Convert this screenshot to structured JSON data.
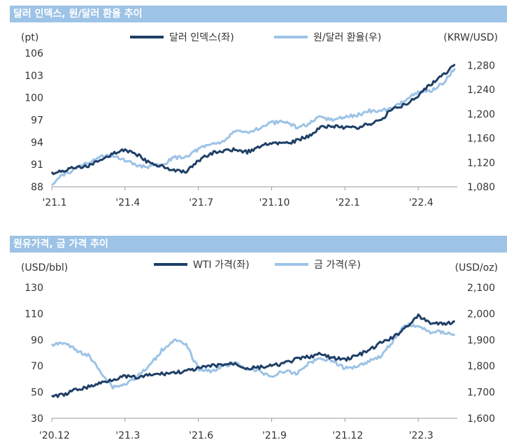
{
  "chart_data": [
    {
      "type": "line",
      "title": "달러 인덱스, 원/달러 환율 추이",
      "left_unit": "(pt)",
      "right_unit": "(KRW/USD)",
      "x_ticks": [
        "'21.1",
        "'21.4",
        "'21.7",
        "'21.10",
        "'22.1",
        "'22.4"
      ],
      "y_left": {
        "min": 88,
        "max": 106,
        "ticks": [
          "88",
          "91",
          "94",
          "97",
          "100",
          "103",
          "106"
        ]
      },
      "y_right": {
        "min": 1080,
        "max": 1300,
        "ticks": [
          "1,080",
          "1,120",
          "1,160",
          "1,200",
          "1,240",
          "1,280"
        ]
      },
      "colors": {
        "left": "#1f3f66",
        "right": "#9dc3e6"
      },
      "series": [
        {
          "name": "달러 인덱스(좌)",
          "axis": "left",
          "x_month": [
            0,
            0.5,
            1,
            1.5,
            2,
            2.5,
            3,
            3.5,
            4,
            4.5,
            5,
            5.5,
            6,
            6.5,
            7,
            7.5,
            8,
            8.5,
            9,
            9.5,
            10,
            10.5,
            11,
            11.5,
            12,
            12.5,
            13,
            13.5,
            14,
            14.5,
            15,
            15.5,
            16,
            16.5
          ],
          "values": [
            89.8,
            90.2,
            90.6,
            90.8,
            91.5,
            92.5,
            93.0,
            92.3,
            91.2,
            90.8,
            90.2,
            89.9,
            91.5,
            92.5,
            92.8,
            93.0,
            92.7,
            93.3,
            94.0,
            93.8,
            94.2,
            94.8,
            96.0,
            96.2,
            96.0,
            95.9,
            96.5,
            97.0,
            98.8,
            99.0,
            100.3,
            101.8,
            103.0,
            104.5
          ]
        },
        {
          "name": "원/달러 환율(우)",
          "axis": "right",
          "x_month": [
            0,
            0.5,
            1,
            1.5,
            2,
            2.5,
            3,
            3.5,
            4,
            4.5,
            5,
            5.5,
            6,
            6.5,
            7,
            7.5,
            8,
            8.5,
            9,
            9.5,
            10,
            10.5,
            11,
            11.5,
            12,
            12.5,
            13,
            13.5,
            14,
            14.5,
            15,
            15.5,
            16,
            16.5
          ],
          "values": [
            1085,
            1100,
            1110,
            1120,
            1130,
            1132,
            1123,
            1115,
            1113,
            1115,
            1128,
            1130,
            1142,
            1150,
            1155,
            1170,
            1170,
            1177,
            1185,
            1188,
            1178,
            1183,
            1195,
            1190,
            1195,
            1198,
            1205,
            1205,
            1210,
            1225,
            1235,
            1238,
            1250,
            1275
          ]
        }
      ]
    },
    {
      "type": "line",
      "title": "원유가격, 금 가격 추이",
      "left_unit": "(USD/bbl)",
      "right_unit": "(USD/oz)",
      "x_ticks": [
        "'20.12",
        "'21.3",
        "'21.6",
        "'21.9",
        "'21.12",
        "'22.3"
      ],
      "y_left": {
        "min": 30,
        "max": 130,
        "ticks": [
          "30",
          "50",
          "70",
          "90",
          "110",
          "130"
        ]
      },
      "y_right": {
        "min": 1600,
        "max": 2100,
        "ticks": [
          "1,600",
          "1,700",
          "1,800",
          "1,900",
          "2,000",
          "2,100"
        ]
      },
      "colors": {
        "left": "#1f3f66",
        "right": "#9dc3e6"
      },
      "series": [
        {
          "name": "WTI 가격(좌)",
          "axis": "left",
          "x_month": [
            0,
            0.5,
            1,
            1.5,
            2,
            2.5,
            3,
            3.5,
            4,
            4.5,
            5,
            5.5,
            6,
            6.5,
            7,
            7.5,
            8,
            8.5,
            9,
            9.5,
            10,
            10.5,
            11,
            11.5,
            12,
            12.5,
            13,
            13.5,
            14,
            14.5,
            15,
            15.5,
            16,
            16.5
          ],
          "values": [
            47,
            48,
            52,
            54,
            57,
            60,
            62,
            61,
            63,
            64,
            65,
            66,
            68,
            70,
            71,
            72,
            68,
            69,
            70,
            72,
            75,
            77,
            79,
            76,
            75,
            78,
            82,
            88,
            92,
            100,
            108,
            103,
            102,
            104
          ]
        },
        {
          "name": "금 가격(우)",
          "axis": "right",
          "x_month": [
            0,
            0.5,
            1,
            1.5,
            2,
            2.5,
            3,
            3.5,
            4,
            4.5,
            5,
            5.5,
            6,
            6.5,
            7,
            7.5,
            8,
            8.5,
            9,
            9.5,
            10,
            10.5,
            11,
            11.5,
            12,
            12.5,
            13,
            13.5,
            14,
            14.5,
            15,
            15.5,
            16,
            16.5
          ],
          "values": [
            1880,
            1890,
            1860,
            1840,
            1780,
            1720,
            1730,
            1760,
            1800,
            1860,
            1900,
            1880,
            1790,
            1780,
            1800,
            1810,
            1790,
            1780,
            1760,
            1780,
            1770,
            1810,
            1830,
            1820,
            1790,
            1800,
            1820,
            1840,
            1900,
            1960,
            1950,
            1930,
            1930,
            1920
          ]
        }
      ]
    }
  ]
}
